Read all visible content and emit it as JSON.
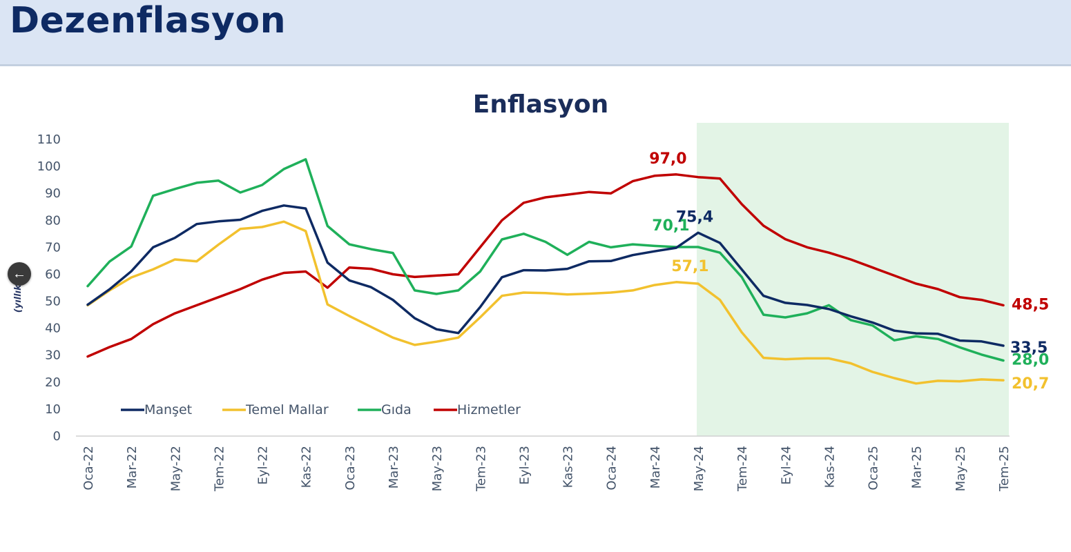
{
  "header": {
    "title": "Dezenflasyon"
  },
  "nav": {
    "back_icon": "arrow-left-icon"
  },
  "colors": {
    "manset": "#0e2a63",
    "temel": "#f2c12e",
    "gida": "#1fb05a",
    "hizmet": "#c00000",
    "highlight": "#e3f4e6",
    "axis": "#44546a"
  },
  "chart_data": {
    "type": "line",
    "title": "Enflasyon",
    "ylabel": "(yıllık %)",
    "ylim": [
      0,
      110
    ],
    "yticks": [
      "0",
      "10",
      "20",
      "30",
      "40",
      "50",
      "60",
      "70",
      "80",
      "90",
      "100",
      "110"
    ],
    "x": [
      "Oca-22",
      "Şub-22",
      "Mar-22",
      "Nis-22",
      "May-22",
      "Haz-22",
      "Tem-22",
      "Ağu-22",
      "Eyl-22",
      "Eki-22",
      "Kas-22",
      "Ara-22",
      "Oca-23",
      "Şub-23",
      "Mar-23",
      "Nis-23",
      "May-23",
      "Haz-23",
      "Tem-23",
      "Ağu-23",
      "Eyl-23",
      "Eki-23",
      "Kas-23",
      "Ara-23",
      "Oca-24",
      "Şub-24",
      "Mar-24",
      "Nis-24",
      "May-24",
      "Haz-24",
      "Tem-24",
      "Ağu-24",
      "Eyl-24",
      "Eki-24",
      "Kas-24",
      "Ara-24",
      "Oca-25",
      "Şub-25",
      "Mar-25",
      "Nis-25",
      "May-25",
      "Haz-25",
      "Tem-25"
    ],
    "xtick_labels": [
      "Oca-22",
      "Mar-22",
      "May-22",
      "Tem-22",
      "Eyl-22",
      "Kas-22",
      "Oca-23",
      "Mar-23",
      "May-23",
      "Tem-23",
      "Eyl-23",
      "Kas-23",
      "Oca-24",
      "Mar-24",
      "May-24",
      "Tem-24",
      "Eyl-24",
      "Kas-24",
      "Oca-25",
      "Mar-25",
      "May-25",
      "Tem-25"
    ],
    "highlight_range": [
      "May-24",
      "Tem-25"
    ],
    "legend_position": "bottom-left",
    "grid": false,
    "series": [
      {
        "name": "Manşet",
        "color_key": "manset",
        "values": [
          48.7,
          54.4,
          61.1,
          70.0,
          73.5,
          78.6,
          79.6,
          80.2,
          83.5,
          85.5,
          84.4,
          64.3,
          57.7,
          55.2,
          50.5,
          43.7,
          39.6,
          38.2,
          47.8,
          58.9,
          61.5,
          61.4,
          62.0,
          64.8,
          64.9,
          67.1,
          68.5,
          69.8,
          75.4,
          71.6,
          61.8,
          52.0,
          49.4,
          48.6,
          47.1,
          44.4,
          42.1,
          39.1,
          38.1,
          37.9,
          35.4,
          35.1,
          33.5
        ],
        "labels": [
          {
            "index": 28,
            "text": "75,4"
          },
          {
            "index": 42,
            "text": "33,5"
          }
        ]
      },
      {
        "name": "Temel Mallar",
        "color_key": "temel",
        "values": [
          48.5,
          54.0,
          58.8,
          61.8,
          65.5,
          64.8,
          71.0,
          76.8,
          77.5,
          79.5,
          76.0,
          48.8,
          44.5,
          40.5,
          36.5,
          33.8,
          35.0,
          36.5,
          44.0,
          52.0,
          53.2,
          53.0,
          52.5,
          52.8,
          53.2,
          54.0,
          56.0,
          57.1,
          56.5,
          50.5,
          38.5,
          29.0,
          28.5,
          28.8,
          28.8,
          27.0,
          23.8,
          21.5,
          19.5,
          20.5,
          20.3,
          21.0,
          20.7
        ],
        "labels": [
          {
            "index": 27,
            "text": "57,1"
          },
          {
            "index": 42,
            "text": "20,7"
          }
        ]
      },
      {
        "name": "Gıda",
        "color_key": "gida",
        "values": [
          55.6,
          64.7,
          70.3,
          89.1,
          91.6,
          93.9,
          94.7,
          90.3,
          93.1,
          99.0,
          102.6,
          77.9,
          71.1,
          69.3,
          67.9,
          54.0,
          52.7,
          54.0,
          61.0,
          72.9,
          75.0,
          72.0,
          67.2,
          72.0,
          70.0,
          71.1,
          70.5,
          70.1,
          70.1,
          68.0,
          59.0,
          45.0,
          44.0,
          45.5,
          48.5,
          43.0,
          41.0,
          35.5,
          37.0,
          36.0,
          32.9,
          30.2,
          28.0
        ],
        "labels": [
          {
            "index": 27,
            "text": "70,1"
          },
          {
            "index": 42,
            "text": "28,0"
          }
        ]
      },
      {
        "name": "Hizmetler",
        "color_key": "hizmet",
        "values": [
          29.5,
          33.0,
          36.0,
          41.5,
          45.5,
          48.5,
          51.5,
          54.5,
          58.0,
          60.5,
          61.0,
          55.0,
          62.5,
          62.0,
          60.0,
          59.0,
          59.5,
          60.0,
          70.0,
          80.0,
          86.5,
          88.5,
          89.5,
          90.5,
          90.0,
          94.5,
          96.5,
          97.0,
          96.0,
          95.5,
          86.0,
          78.0,
          73.0,
          70.0,
          68.0,
          65.5,
          62.5,
          59.5,
          56.5,
          54.5,
          51.5,
          50.5,
          48.5
        ],
        "labels": [
          {
            "index": 27,
            "text": "97,0"
          },
          {
            "index": 42,
            "text": "48,5"
          }
        ]
      }
    ]
  }
}
